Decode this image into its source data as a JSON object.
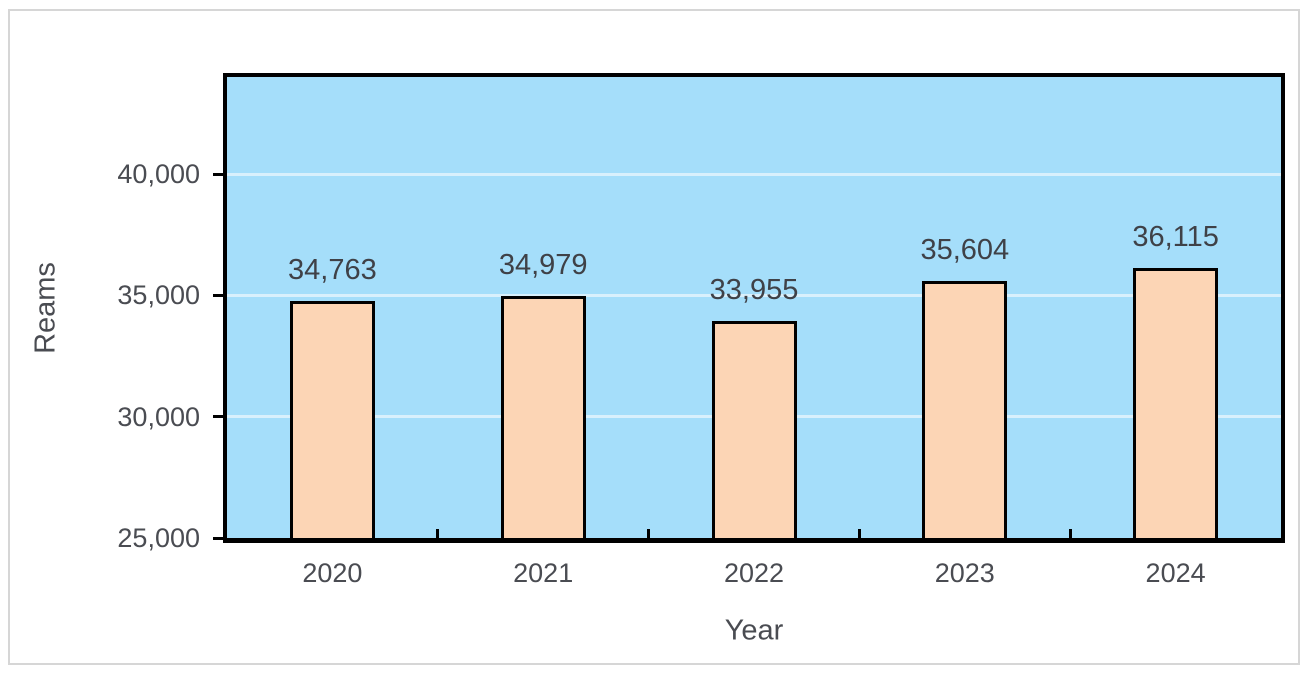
{
  "chart_data": {
    "type": "bar",
    "title": "",
    "categories": [
      "2020",
      "2021",
      "2022",
      "2023",
      "2024"
    ],
    "values": [
      34763,
      34979,
      33955,
      35604,
      36115
    ],
    "value_labels": [
      "34,763",
      "34,979",
      "33,955",
      "35,604",
      "36,115"
    ],
    "xlabel": "Year",
    "ylabel": "Reams",
    "ylim": [
      25000,
      44000
    ],
    "yticks": [
      25000,
      30000,
      35000,
      40000
    ],
    "ytick_labels": [
      "25,000",
      "30,000",
      "35,000",
      "40,000"
    ],
    "grid": true,
    "legend": "none",
    "colors": {
      "plot_bg": "#a5defa",
      "gridline": "#d9f0fc",
      "bar_fill": "#fcd5b5",
      "bar_border": "#000000",
      "plot_border": "#000000",
      "text": "#4a4c52",
      "frame_border": "#d6d6d6",
      "page_bg": "#ffffff"
    }
  }
}
